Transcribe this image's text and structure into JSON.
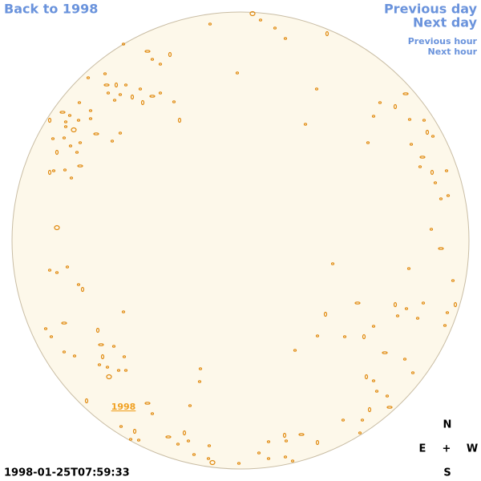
{
  "nav": {
    "back": "Back to 1998",
    "previous_day": "Previous day",
    "next_day": "Next day",
    "previous_hour": "Previous hour",
    "next_hour": "Next hour"
  },
  "disk_label": "1998",
  "timestamp": "1998-01-25T07:59:33",
  "compass": {
    "north": "N",
    "east": "E",
    "center": "+",
    "west": "W",
    "south": "S"
  }
}
